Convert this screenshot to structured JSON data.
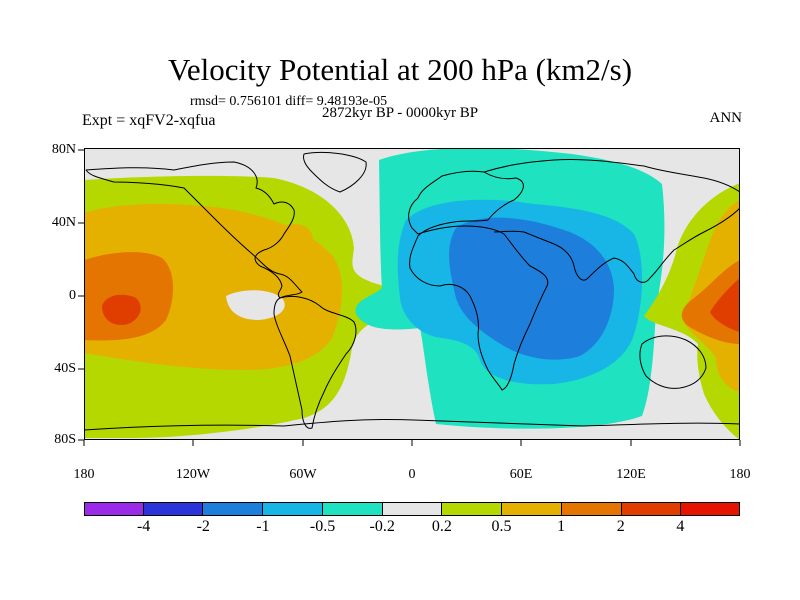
{
  "title": "Velocity Potential at 200 hPa (km2/s)",
  "stats": "rmsd= 0.756101 diff= 9.48193e-05",
  "expt": "Expt = xqFV2-xqfua",
  "period": "2872kyr BP - 0000kyr BP",
  "season": "ANN",
  "lat_labels": [
    "80N",
    "40N",
    "0",
    "40S",
    "80S"
  ],
  "lon_labels": [
    "180",
    "120W",
    "60W",
    "0",
    "60E",
    "120E",
    "180"
  ],
  "colorbar": {
    "colors": [
      "#9A2BE8",
      "#2B34D8",
      "#1D7FDB",
      "#17B6E6",
      "#1EE2C0",
      "#E6E6E6",
      "#B4D800",
      "#E5B100",
      "#E37500",
      "#E03E00",
      "#E51400"
    ],
    "labels": [
      "-4",
      "-2",
      "-1",
      "-0.5",
      "-0.2",
      "0.2",
      "0.5",
      "1",
      "2",
      "4"
    ]
  },
  "map_colors": {
    "background": "#E6E6E6",
    "level_pos_02": "#B4D800",
    "level_pos_05": "#E5B100",
    "level_pos_1": "#E37500",
    "level_pos_2": "#E03E00",
    "level_neg_02": "#1EE2C0",
    "level_neg_05": "#17B6E6",
    "level_neg_1": "#1D7FDB"
  }
}
